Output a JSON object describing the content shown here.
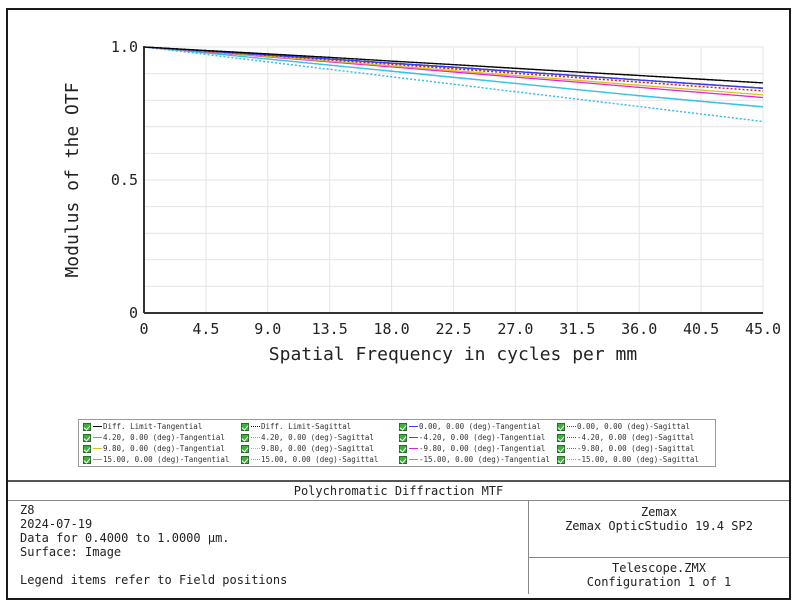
{
  "chart_data": {
    "type": "line",
    "title": "Polychromatic Diffraction MTF",
    "xlabel": "Spatial Frequency in cycles per mm",
    "ylabel": "Modulus of the OTF",
    "xlim": [
      0,
      45
    ],
    "ylim": [
      0,
      1.0
    ],
    "x_ticks": [
      "0",
      "4.5",
      "9.0",
      "13.5",
      "18.0",
      "22.5",
      "27.0",
      "31.5",
      "36.0",
      "40.5",
      "45.0"
    ],
    "y_ticks": [
      "0",
      "0.5",
      "1.0"
    ],
    "grid": true,
    "legend_position": "below",
    "x": [
      0,
      4.5,
      9.0,
      13.5,
      18.0,
      22.5,
      27.0,
      31.5,
      36.0,
      40.5,
      45.0
    ],
    "series": [
      {
        "name": "Diff. Limit-Tangential",
        "color": "#000000",
        "style": "solid",
        "values": [
          1.0,
          0.987,
          0.974,
          0.961,
          0.947,
          0.934,
          0.92,
          0.906,
          0.893,
          0.879,
          0.865
        ]
      },
      {
        "name": "Diff. Limit-Sagittal",
        "color": "#000000",
        "style": "dotted",
        "values": [
          1.0,
          0.987,
          0.974,
          0.961,
          0.947,
          0.934,
          0.92,
          0.906,
          0.893,
          0.879,
          0.865
        ]
      },
      {
        "name": "0.00, 0.00 (deg)-Tangential",
        "color": "#3a3aff",
        "style": "solid",
        "values": [
          1.0,
          0.985,
          0.97,
          0.955,
          0.939,
          0.924,
          0.908,
          0.892,
          0.876,
          0.86,
          0.845
        ]
      },
      {
        "name": "0.00, 0.00 (deg)-Sagittal",
        "color": "#3a3aff",
        "style": "dotted",
        "values": [
          1.0,
          0.985,
          0.97,
          0.955,
          0.939,
          0.924,
          0.908,
          0.892,
          0.876,
          0.86,
          0.845
        ]
      },
      {
        "name": "4.20, 0.00 (deg)-Tangential",
        "color": "#44cc44",
        "style": "solid",
        "values": [
          1.0,
          0.985,
          0.97,
          0.955,
          0.939,
          0.924,
          0.908,
          0.892,
          0.876,
          0.86,
          0.845
        ]
      },
      {
        "name": "4.20, 0.00 (deg)-Sagittal",
        "color": "#44cc44",
        "style": "dotted",
        "values": [
          1.0,
          0.985,
          0.97,
          0.955,
          0.939,
          0.924,
          0.908,
          0.892,
          0.876,
          0.86,
          0.845
        ]
      },
      {
        "name": "-4.20, 0.00 (deg)-Tangential",
        "color": "#e02020",
        "style": "solid",
        "values": [
          1.0,
          0.985,
          0.97,
          0.955,
          0.939,
          0.924,
          0.908,
          0.892,
          0.876,
          0.86,
          0.845
        ]
      },
      {
        "name": "-4.20, 0.00 (deg)-Sagittal",
        "color": "#e02020",
        "style": "dotted",
        "values": [
          1.0,
          0.984,
          0.968,
          0.951,
          0.935,
          0.918,
          0.901,
          0.885,
          0.868,
          0.851,
          0.835
        ]
      },
      {
        "name": "9.80, 0.00 (deg)-Tangential",
        "color": "#d8c020",
        "style": "solid",
        "values": [
          1.0,
          0.983,
          0.965,
          0.947,
          0.929,
          0.911,
          0.893,
          0.875,
          0.856,
          0.838,
          0.82
        ]
      },
      {
        "name": "9.80, 0.00 (deg)-Sagittal",
        "color": "#d8c020",
        "style": "dotted",
        "values": [
          1.0,
          0.984,
          0.968,
          0.951,
          0.935,
          0.918,
          0.901,
          0.885,
          0.868,
          0.851,
          0.835
        ]
      },
      {
        "name": "-9.80, 0.00 (deg)-Tangential",
        "color": "#e020e0",
        "style": "solid",
        "values": [
          1.0,
          0.982,
          0.963,
          0.944,
          0.925,
          0.906,
          0.887,
          0.868,
          0.848,
          0.829,
          0.81
        ]
      },
      {
        "name": "-9.80, 0.00 (deg)-Sagittal",
        "color": "#e020e0",
        "style": "dotted",
        "values": [
          1.0,
          0.984,
          0.968,
          0.951,
          0.935,
          0.918,
          0.901,
          0.885,
          0.868,
          0.851,
          0.835
        ]
      },
      {
        "name": "15.00, 0.00 (deg)-Tangential",
        "color": "#30c8e8",
        "style": "solid",
        "values": [
          1.0,
          0.978,
          0.955,
          0.932,
          0.909,
          0.886,
          0.863,
          0.84,
          0.817,
          0.796,
          0.775
        ]
      },
      {
        "name": "15.00, 0.00 (deg)-Sagittal",
        "color": "#30c8e8",
        "style": "dotted",
        "values": [
          1.0,
          0.972,
          0.944,
          0.916,
          0.888,
          0.86,
          0.832,
          0.804,
          0.776,
          0.748,
          0.72
        ]
      },
      {
        "name": "-15.00, 0.00 (deg)-Tangential",
        "color": "#8888ee",
        "style": "solid",
        "values": [
          1.0,
          0.978,
          0.955,
          0.932,
          0.909,
          0.886,
          0.863,
          0.84,
          0.817,
          0.796,
          0.775
        ]
      },
      {
        "name": "-15.00, 0.00 (deg)-Sagittal",
        "color": "#8888ee",
        "style": "dotted",
        "values": [
          1.0,
          0.972,
          0.944,
          0.916,
          0.888,
          0.86,
          0.832,
          0.804,
          0.776,
          0.748,
          0.72
        ]
      }
    ]
  },
  "legend": {
    "items": [
      {
        "label": "Diff. Limit-Tangential",
        "color": "#000000",
        "style": "solid",
        "col": 0,
        "row": 0
      },
      {
        "label": "Diff. Limit-Sagittal",
        "color": "#000000",
        "style": "dotted",
        "col": 1,
        "row": 0
      },
      {
        "label": "0.00, 0.00 (deg)-Tangential",
        "color": "#3a3aff",
        "style": "solid",
        "col": 2,
        "row": 0
      },
      {
        "label": "0.00, 0.00 (deg)-Sagittal",
        "color": "#3a3aff",
        "style": "dotted",
        "col": 3,
        "row": 0
      },
      {
        "label": "4.20, 0.00 (deg)-Tangential",
        "color": "#44cc44",
        "style": "solid",
        "col": 0,
        "row": 1
      },
      {
        "label": "4.20, 0.00 (deg)-Sagittal",
        "color": "#44cc44",
        "style": "dotted",
        "col": 1,
        "row": 1
      },
      {
        "label": "-4.20, 0.00 (deg)-Tangential",
        "color": "#e02020",
        "style": "solid",
        "col": 2,
        "row": 1
      },
      {
        "label": "-4.20, 0.00 (deg)-Sagittal",
        "color": "#e02020",
        "style": "dotted",
        "col": 3,
        "row": 1
      },
      {
        "label": "9.80, 0.00 (deg)-Tangential",
        "color": "#d8c020",
        "style": "solid",
        "col": 0,
        "row": 2
      },
      {
        "label": "9.80, 0.00 (deg)-Sagittal",
        "color": "#d8c020",
        "style": "dotted",
        "col": 1,
        "row": 2
      },
      {
        "label": "-9.80, 0.00 (deg)-Tangential",
        "color": "#e020e0",
        "style": "solid",
        "col": 2,
        "row": 2
      },
      {
        "label": "-9.80, 0.00 (deg)-Sagittal",
        "color": "#e020e0",
        "style": "dotted",
        "col": 3,
        "row": 2
      },
      {
        "label": "15.00, 0.00 (deg)-Tangential",
        "color": "#30c8e8",
        "style": "solid",
        "col": 0,
        "row": 3
      },
      {
        "label": "15.00, 0.00 (deg)-Sagittal",
        "color": "#30c8e8",
        "style": "dotted",
        "col": 1,
        "row": 3
      },
      {
        "label": "-15.00, 0.00 (deg)-Tangential",
        "color": "#8888ee",
        "style": "solid",
        "col": 2,
        "row": 3
      },
      {
        "label": "-15.00, 0.00 (deg)-Sagittal",
        "color": "#8888ee",
        "style": "dotted",
        "col": 3,
        "row": 3
      }
    ]
  },
  "info": {
    "title": "Polychromatic Diffraction MTF",
    "left_lines": [
      "Z8",
      "2024-07-19",
      "Data for 0.4000 to 1.0000 µm.",
      "Surface: Image"
    ],
    "legend_note": "Legend items refer to Field positions",
    "right_top": [
      "Zemax",
      "Zemax OpticStudio 19.4 SP2"
    ],
    "right_bottom": [
      "Telescope.ZMX",
      "Configuration 1 of 1"
    ]
  }
}
